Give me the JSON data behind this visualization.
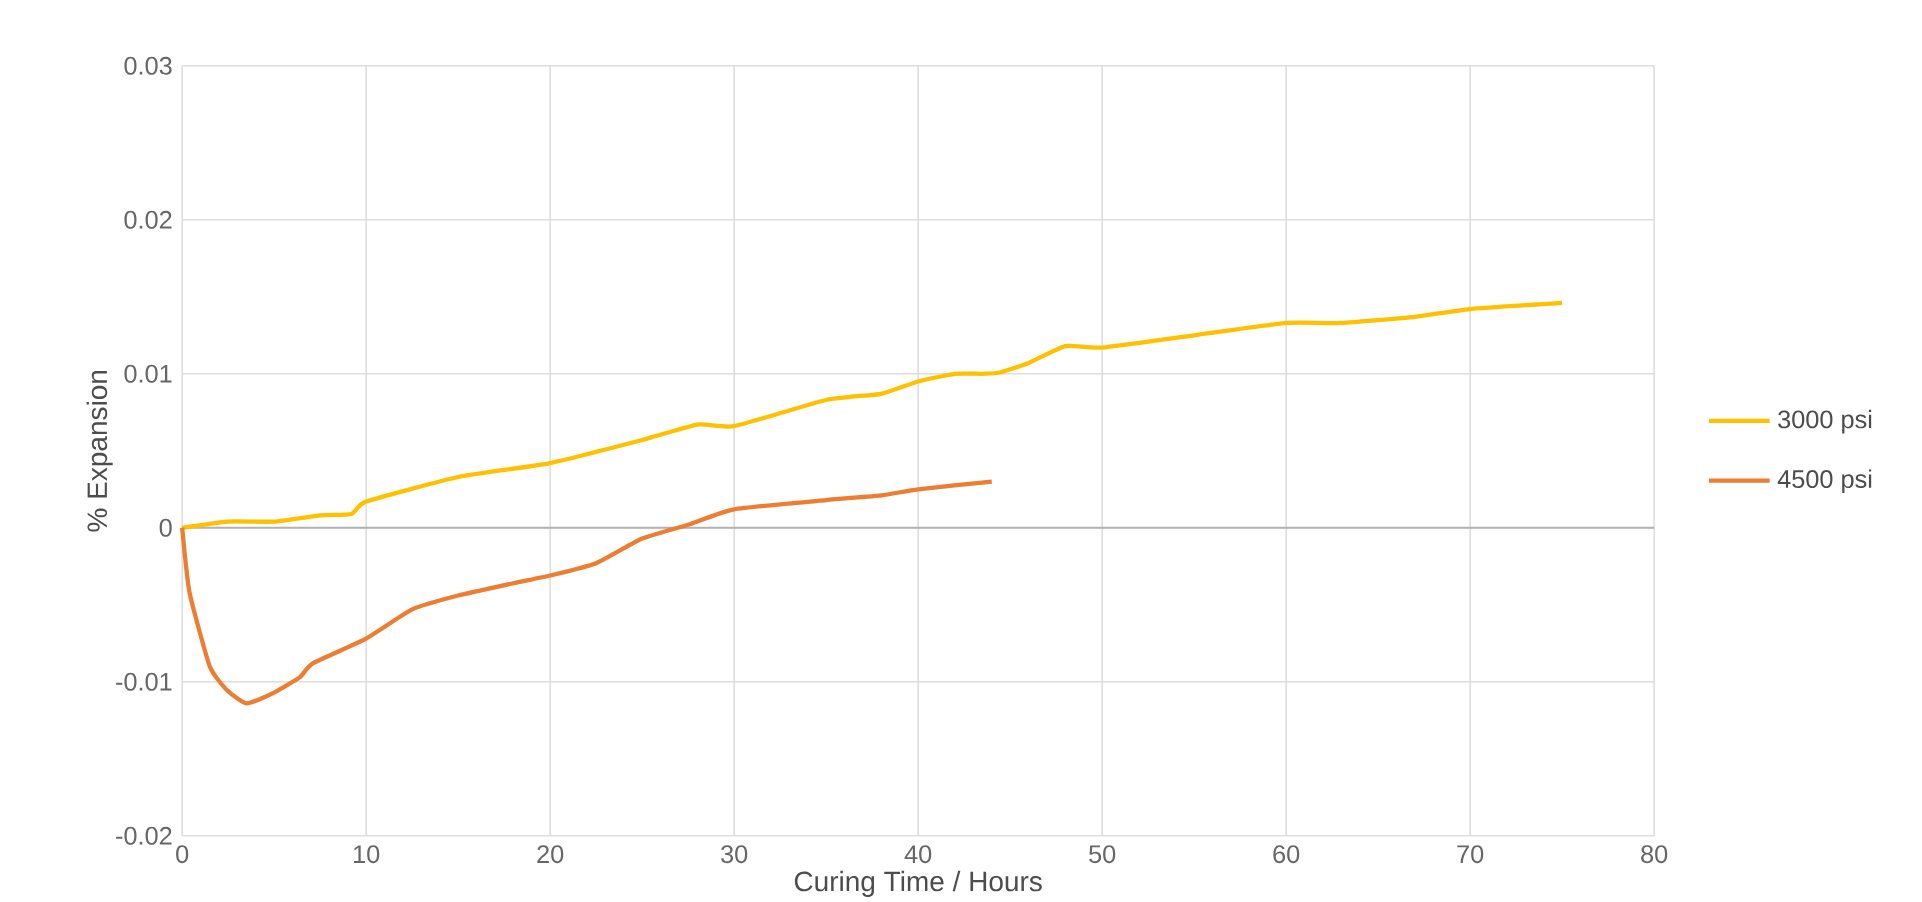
{
  "chart_data": {
    "type": "line",
    "xlabel": "Curing Time / Hours",
    "ylabel": "% Expansion",
    "xlim": [
      0,
      80
    ],
    "xticks": [
      0,
      10,
      20,
      30,
      40,
      50,
      60,
      70,
      80
    ],
    "ylim": [
      -0.02,
      0.03
    ],
    "yticks": [
      -0.02,
      -0.01,
      0,
      0.01,
      0.02,
      0.03
    ],
    "grid": true,
    "legend": "right",
    "series": [
      {
        "name": "3000 psi",
        "color": "#ffc000",
        "x": [
          0,
          2.5,
          5,
          7.5,
          9.2,
          10,
          15,
          20,
          25,
          28,
          30,
          35,
          38,
          40,
          42,
          43.5,
          44.5,
          46,
          48,
          50,
          55,
          60,
          63,
          67,
          70,
          75
        ],
        "values": [
          0,
          0.0004,
          0.0004,
          0.0008,
          0.0009,
          0.0017,
          0.0033,
          0.0042,
          0.0057,
          0.0067,
          0.0066,
          0.0083,
          0.0087,
          0.0095,
          0.01,
          0.01,
          0.0101,
          0.0107,
          0.0118,
          0.0117,
          0.0125,
          0.0133,
          0.0133,
          0.0137,
          0.0142,
          0.0146
        ]
      },
      {
        "name": "4500 psi",
        "color": "#ed7d31",
        "x": [
          0,
          0.4,
          1.5,
          2.4,
          3.5,
          5,
          6.4,
          7.1,
          10,
          12.5,
          15,
          18,
          20,
          22.5,
          25,
          27.5,
          30,
          35,
          38,
          40,
          44
        ],
        "values": [
          0,
          -0.0042,
          -0.009,
          -0.0105,
          -0.0114,
          -0.0107,
          -0.0097,
          -0.0088,
          -0.0072,
          -0.0053,
          -0.0044,
          -0.0036,
          -0.0031,
          -0.0023,
          -0.0007,
          0.0002,
          0.0012,
          0.0018,
          0.0021,
          0.0025,
          0.003
        ]
      }
    ]
  }
}
